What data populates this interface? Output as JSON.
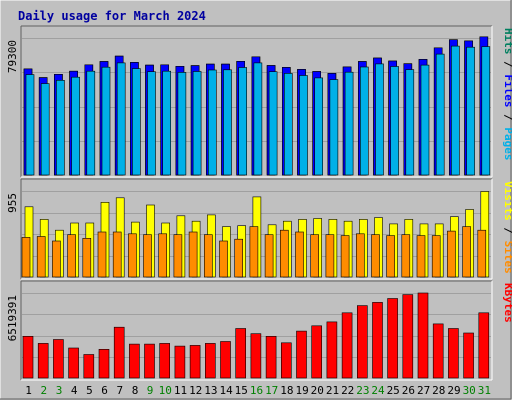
{
  "chart_data": {
    "type": "bar",
    "title": "Daily usage for March 2024",
    "days": [
      1,
      2,
      3,
      4,
      5,
      6,
      7,
      8,
      9,
      10,
      11,
      12,
      13,
      14,
      15,
      16,
      17,
      18,
      19,
      20,
      21,
      22,
      23,
      24,
      25,
      26,
      27,
      28,
      29,
      30,
      31
    ],
    "weekend_days": [
      2,
      3,
      9,
      10,
      16,
      17,
      23,
      24,
      30,
      31
    ],
    "panels": [
      {
        "id": "hits",
        "max_label": "79300",
        "ymax": 79300,
        "legend": [
          "Pages",
          "Files",
          "Hits"
        ],
        "series": [
          {
            "name": "Hits",
            "color": "#007f5f",
            "values": [
              61400,
              56400,
              58300,
              60100,
              63800,
              65700,
              68800,
              65200,
              63600,
              63800,
              62900,
              63300,
              64200,
              64200,
              65800,
              68400,
              63400,
              62300,
              61100,
              59900,
              58800,
              62600,
              65700,
              67700,
              66000,
              64400,
              66900,
              73600,
              78300,
              77600,
              80000
            ]
          },
          {
            "name": "Files",
            "color": "#0000ff",
            "values": [
              61400,
              56400,
              58300,
              60100,
              63800,
              65700,
              68800,
              65200,
              63600,
              63800,
              62900,
              63300,
              64200,
              64200,
              65800,
              68400,
              63400,
              62300,
              61100,
              59900,
              58800,
              62600,
              65700,
              67700,
              66000,
              64400,
              66900,
              73600,
              78300,
              77600,
              80000
            ]
          },
          {
            "name": "Pages",
            "color": "#00b0e8",
            "values": [
              58100,
              52900,
              54800,
              56600,
              60100,
              62400,
              64900,
              61600,
              59800,
              60100,
              59400,
              59900,
              60800,
              60900,
              62200,
              64900,
              59800,
              58800,
              57600,
              56200,
              55200,
              59500,
              62500,
              64300,
              62800,
              61000,
              63600,
              70000,
              74600,
              74000,
              74300
            ]
          }
        ]
      },
      {
        "id": "visits",
        "max_label": "955",
        "ymax": 955,
        "legend": [
          "Sites",
          "Visits"
        ],
        "series": [
          {
            "name": "Visits",
            "color": "#ffff00",
            "values": [
              780,
              640,
              520,
              600,
              600,
              830,
              880,
              610,
              800,
              600,
              680,
              620,
              690,
              560,
              570,
              890,
              580,
              620,
              640,
              650,
              640,
              620,
              640,
              660,
              590,
              640,
              590,
              590,
              670,
              750,
              950
            ]
          },
          {
            "name": "Sites",
            "color": "#ff8c00",
            "values": [
              440,
              450,
              400,
              470,
              430,
              500,
              500,
              480,
              470,
              480,
              470,
              500,
              470,
              400,
              420,
              560,
              470,
              520,
              500,
              470,
              470,
              460,
              480,
              470,
              460,
              470,
              460,
              460,
              510,
              560,
              520
            ]
          }
        ]
      },
      {
        "id": "kbytes",
        "max_label": "6519391",
        "ymax": 6519391,
        "legend": [
          "KBytes"
        ],
        "series": [
          {
            "name": "KBytes",
            "color": "#ff0000",
            "values": [
              3200000,
              2650000,
              2950000,
              2300000,
              1800000,
              2200000,
              3900000,
              2600000,
              2600000,
              2650000,
              2450000,
              2500000,
              2650000,
              2800000,
              3800000,
              3400000,
              3200000,
              2700000,
              3600000,
              4000000,
              4300000,
              5000000,
              5550000,
              5800000,
              6100000,
              6400000,
              6519391,
              4150000,
              3800000,
              3450000,
              5000000
            ]
          }
        ]
      }
    ]
  },
  "colors": {
    "background": "#c0c0c0",
    "plot": "#c0c0c0",
    "gridline": "#a0a0a0",
    "title": "#0000a0",
    "day_label": "#000000",
    "weekend_label": "#008000"
  }
}
